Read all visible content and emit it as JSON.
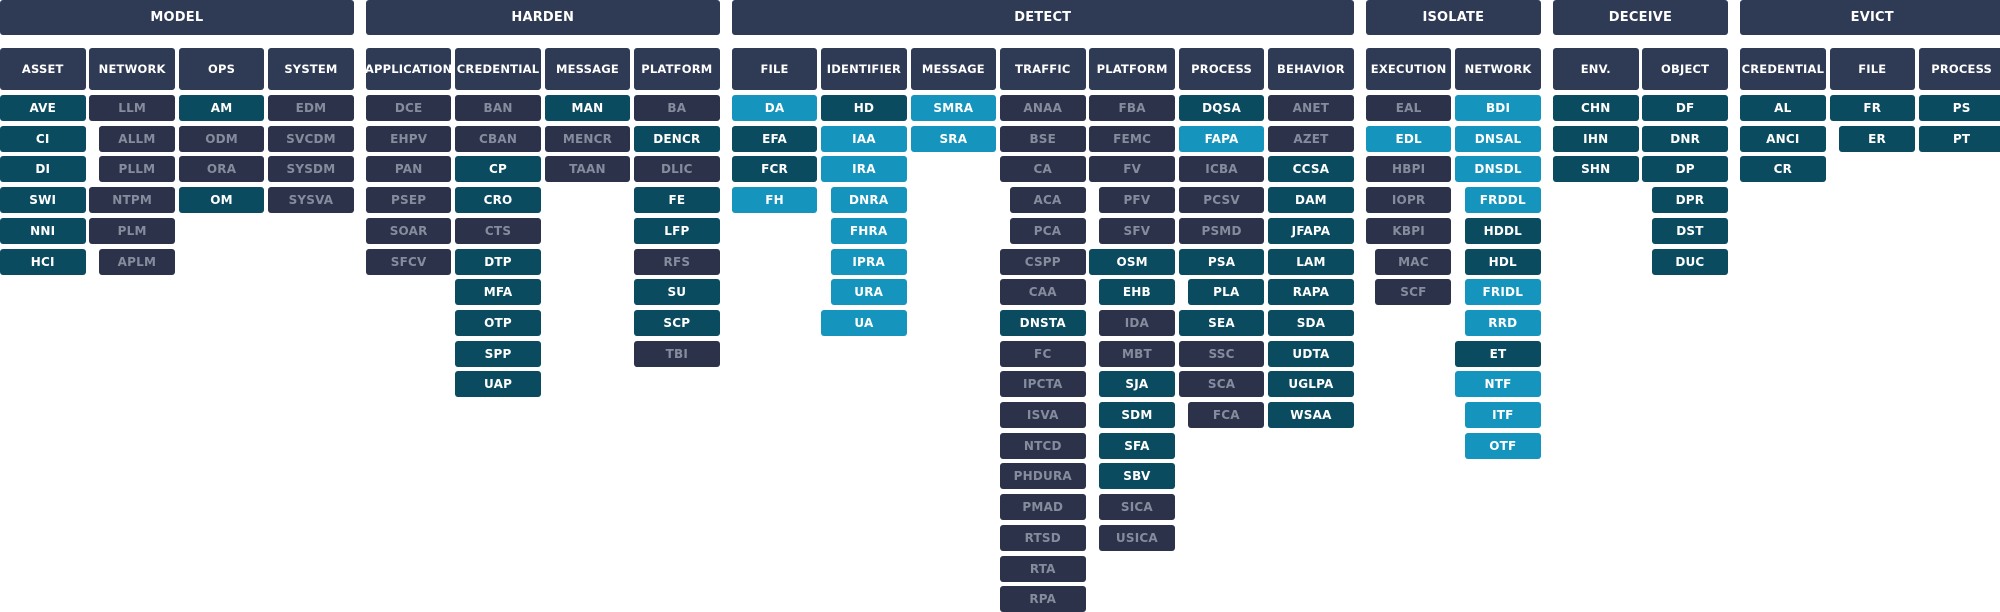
{
  "colors": {
    "header": "#2f3a55",
    "gray": "#2c3249",
    "gray_text": "#868c9e",
    "teal": "#0b4b60",
    "cyan": "#1595bd"
  },
  "tactics": [
    {
      "label": "MODEL",
      "subs": [
        {
          "label": "ASSET",
          "items": [
            {
              "t": "AVE",
              "c": "t"
            },
            {
              "t": "CI",
              "c": "t"
            },
            {
              "t": "DI",
              "c": "t"
            },
            {
              "t": "SWI",
              "c": "t"
            },
            {
              "t": "NNI",
              "c": "t"
            },
            {
              "t": "HCI",
              "c": "t"
            }
          ]
        },
        {
          "label": "NETWORK",
          "items": [
            {
              "t": "LLM",
              "c": "g"
            },
            {
              "t": "ALLM",
              "c": "g",
              "i": 1
            },
            {
              "t": "PLLM",
              "c": "g",
              "i": 1
            },
            {
              "t": "NTPM",
              "c": "g"
            },
            {
              "t": "PLM",
              "c": "g"
            },
            {
              "t": "APLM",
              "c": "g",
              "i": 1
            }
          ]
        },
        {
          "label": "OPS",
          "items": [
            {
              "t": "AM",
              "c": "t"
            },
            {
              "t": "ODM",
              "c": "g"
            },
            {
              "t": "ORA",
              "c": "g"
            },
            {
              "t": "OM",
              "c": "t"
            }
          ]
        },
        {
          "label": "SYSTEM",
          "items": [
            {
              "t": "EDM",
              "c": "g"
            },
            {
              "t": "SVCDM",
              "c": "g"
            },
            {
              "t": "SYSDM",
              "c": "g"
            },
            {
              "t": "SYSVA",
              "c": "g"
            }
          ]
        }
      ]
    },
    {
      "label": "HARDEN",
      "subs": [
        {
          "label": "APPLICATION",
          "items": [
            {
              "t": "DCE",
              "c": "g"
            },
            {
              "t": "EHPV",
              "c": "g"
            },
            {
              "t": "PAN",
              "c": "g"
            },
            {
              "t": "PSEP",
              "c": "g"
            },
            {
              "t": "SOAR",
              "c": "g"
            },
            {
              "t": "SFCV",
              "c": "g"
            }
          ]
        },
        {
          "label": "CREDENTIAL",
          "items": [
            {
              "t": "BAN",
              "c": "g"
            },
            {
              "t": "CBAN",
              "c": "g"
            },
            {
              "t": "CP",
              "c": "t"
            },
            {
              "t": "CRO",
              "c": "t"
            },
            {
              "t": "CTS",
              "c": "g"
            },
            {
              "t": "DTP",
              "c": "t"
            },
            {
              "t": "MFA",
              "c": "t"
            },
            {
              "t": "OTP",
              "c": "t"
            },
            {
              "t": "SPP",
              "c": "t"
            },
            {
              "t": "UAP",
              "c": "t"
            }
          ]
        },
        {
          "label": "MESSAGE",
          "items": [
            {
              "t": "MAN",
              "c": "t"
            },
            {
              "t": "MENCR",
              "c": "g"
            },
            {
              "t": "TAAN",
              "c": "g"
            }
          ]
        },
        {
          "label": "PLATFORM",
          "items": [
            {
              "t": "BA",
              "c": "g"
            },
            {
              "t": "DENCR",
              "c": "t"
            },
            {
              "t": "DLIC",
              "c": "g"
            },
            {
              "t": "FE",
              "c": "t"
            },
            {
              "t": "LFP",
              "c": "t"
            },
            {
              "t": "RFS",
              "c": "g"
            },
            {
              "t": "SU",
              "c": "t"
            },
            {
              "t": "SCP",
              "c": "t"
            },
            {
              "t": "TBI",
              "c": "g"
            }
          ]
        }
      ]
    },
    {
      "label": "DETECT",
      "subs": [
        {
          "label": "FILE",
          "items": [
            {
              "t": "DA",
              "c": "c"
            },
            {
              "t": "EFA",
              "c": "t"
            },
            {
              "t": "FCR",
              "c": "t"
            },
            {
              "t": "FH",
              "c": "c"
            }
          ]
        },
        {
          "label": "IDENTIFIER",
          "items": [
            {
              "t": "HD",
              "c": "t"
            },
            {
              "t": "IAA",
              "c": "c"
            },
            {
              "t": "IRA",
              "c": "c"
            },
            {
              "t": "DNRA",
              "c": "c",
              "i": 1
            },
            {
              "t": "FHRA",
              "c": "c",
              "i": 1
            },
            {
              "t": "IPRA",
              "c": "c",
              "i": 1
            },
            {
              "t": "URA",
              "c": "c",
              "i": 1
            },
            {
              "t": "UA",
              "c": "c"
            }
          ]
        },
        {
          "label": "MESSAGE",
          "items": [
            {
              "t": "SMRA",
              "c": "c"
            },
            {
              "t": "SRA",
              "c": "c"
            }
          ]
        },
        {
          "label": "TRAFFIC",
          "items": [
            {
              "t": "ANAA",
              "c": "g"
            },
            {
              "t": "BSE",
              "c": "g"
            },
            {
              "t": "CA",
              "c": "g"
            },
            {
              "t": "ACA",
              "c": "g",
              "i": 1
            },
            {
              "t": "PCA",
              "c": "g",
              "i": 1
            },
            {
              "t": "CSPP",
              "c": "g"
            },
            {
              "t": "CAA",
              "c": "g"
            },
            {
              "t": "DNSTA",
              "c": "t"
            },
            {
              "t": "FC",
              "c": "g"
            },
            {
              "t": "IPCTA",
              "c": "g"
            },
            {
              "t": "ISVA",
              "c": "g"
            },
            {
              "t": "NTCD",
              "c": "g"
            },
            {
              "t": "PHDURA",
              "c": "g"
            },
            {
              "t": "PMAD",
              "c": "g"
            },
            {
              "t": "RTSD",
              "c": "g"
            },
            {
              "t": "RTA",
              "c": "g"
            },
            {
              "t": "RPA",
              "c": "g"
            }
          ]
        },
        {
          "label": "PLATFORM",
          "items": [
            {
              "t": "FBA",
              "c": "g"
            },
            {
              "t": "FEMC",
              "c": "g"
            },
            {
              "t": "FV",
              "c": "g"
            },
            {
              "t": "PFV",
              "c": "g",
              "i": 1
            },
            {
              "t": "SFV",
              "c": "g",
              "i": 1
            },
            {
              "t": "OSM",
              "c": "t"
            },
            {
              "t": "EHB",
              "c": "t",
              "i": 1
            },
            {
              "t": "IDA",
              "c": "g",
              "i": 1
            },
            {
              "t": "MBT",
              "c": "g",
              "i": 1
            },
            {
              "t": "SJA",
              "c": "t",
              "i": 1
            },
            {
              "t": "SDM",
              "c": "t",
              "i": 1
            },
            {
              "t": "SFA",
              "c": "t",
              "i": 1
            },
            {
              "t": "SBV",
              "c": "t",
              "i": 1
            },
            {
              "t": "SICA",
              "c": "g",
              "i": 1
            },
            {
              "t": "USICA",
              "c": "g",
              "i": 1
            }
          ]
        },
        {
          "label": "PROCESS",
          "items": [
            {
              "t": "DQSA",
              "c": "t"
            },
            {
              "t": "FAPA",
              "c": "c"
            },
            {
              "t": "ICBA",
              "c": "g"
            },
            {
              "t": "PCSV",
              "c": "g"
            },
            {
              "t": "PSMD",
              "c": "g"
            },
            {
              "t": "PSA",
              "c": "t"
            },
            {
              "t": "PLA",
              "c": "t",
              "i": 1
            },
            {
              "t": "SEA",
              "c": "t"
            },
            {
              "t": "SSC",
              "c": "g"
            },
            {
              "t": "SCA",
              "c": "g"
            },
            {
              "t": "FCA",
              "c": "g",
              "i": 1
            }
          ]
        },
        {
          "label": "BEHAVIOR",
          "items": [
            {
              "t": "ANET",
              "c": "g"
            },
            {
              "t": "AZET",
              "c": "g"
            },
            {
              "t": "CCSA",
              "c": "t"
            },
            {
              "t": "DAM",
              "c": "t"
            },
            {
              "t": "JFAPA",
              "c": "t"
            },
            {
              "t": "LAM",
              "c": "t"
            },
            {
              "t": "RAPA",
              "c": "t"
            },
            {
              "t": "SDA",
              "c": "t"
            },
            {
              "t": "UDTA",
              "c": "t"
            },
            {
              "t": "UGLPA",
              "c": "t"
            },
            {
              "t": "WSAA",
              "c": "t"
            }
          ]
        }
      ]
    },
    {
      "label": "ISOLATE",
      "subs": [
        {
          "label": "EXECUTION",
          "items": [
            {
              "t": "EAL",
              "c": "g"
            },
            {
              "t": "EDL",
              "c": "c"
            },
            {
              "t": "HBPI",
              "c": "g"
            },
            {
              "t": "IOPR",
              "c": "g"
            },
            {
              "t": "KBPI",
              "c": "g"
            },
            {
              "t": "MAC",
              "c": "g",
              "i": 1
            },
            {
              "t": "SCF",
              "c": "g",
              "i": 1
            }
          ]
        },
        {
          "label": "NETWORK",
          "items": [
            {
              "t": "BDI",
              "c": "c"
            },
            {
              "t": "DNSAL",
              "c": "c"
            },
            {
              "t": "DNSDL",
              "c": "c"
            },
            {
              "t": "FRDDL",
              "c": "c",
              "i": 1
            },
            {
              "t": "HDDL",
              "c": "t",
              "i": 1
            },
            {
              "t": "HDL",
              "c": "t",
              "i": 1
            },
            {
              "t": "FRIDL",
              "c": "c",
              "i": 1
            },
            {
              "t": "RRD",
              "c": "c",
              "i": 1
            },
            {
              "t": "ET",
              "c": "t"
            },
            {
              "t": "NTF",
              "c": "c"
            },
            {
              "t": "ITF",
              "c": "c",
              "i": 1
            },
            {
              "t": "OTF",
              "c": "c",
              "i": 1
            }
          ]
        }
      ]
    },
    {
      "label": "DECEIVE",
      "subs": [
        {
          "label": "ENV.",
          "items": [
            {
              "t": "CHN",
              "c": "t"
            },
            {
              "t": "IHN",
              "c": "t"
            },
            {
              "t": "SHN",
              "c": "t"
            }
          ]
        },
        {
          "label": "OBJECT",
          "items": [
            {
              "t": "DF",
              "c": "t"
            },
            {
              "t": "DNR",
              "c": "t"
            },
            {
              "t": "DP",
              "c": "t"
            },
            {
              "t": "DPR",
              "c": "t",
              "i": 1
            },
            {
              "t": "DST",
              "c": "t",
              "i": 1
            },
            {
              "t": "DUC",
              "c": "t",
              "i": 1
            }
          ]
        }
      ]
    },
    {
      "label": "EVICT",
      "subs": [
        {
          "label": "CREDENTIAL",
          "items": [
            {
              "t": "AL",
              "c": "t"
            },
            {
              "t": "ANCI",
              "c": "t"
            },
            {
              "t": "CR",
              "c": "t"
            }
          ]
        },
        {
          "label": "FILE",
          "items": [
            {
              "t": "FR",
              "c": "t"
            },
            {
              "t": "ER",
              "c": "t",
              "i": 1
            }
          ]
        },
        {
          "label": "PROCESS",
          "items": [
            {
              "t": "PS",
              "c": "t"
            },
            {
              "t": "PT",
              "c": "t"
            }
          ]
        }
      ]
    }
  ]
}
